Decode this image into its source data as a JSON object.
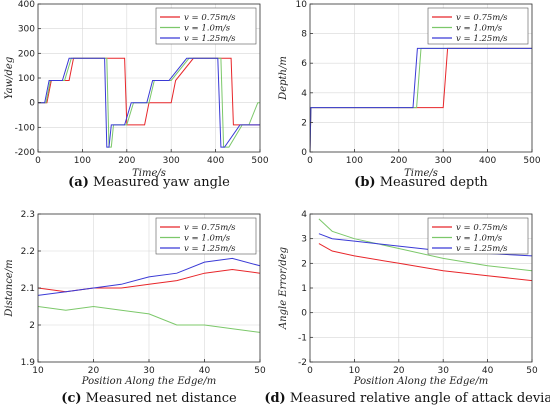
{
  "chart_data": [
    {
      "id": "a",
      "type": "line",
      "caption_tag": "(a)",
      "caption_text": "Measured yaw angle",
      "xlabel": "Time/s",
      "ylabel": "Yaw/deg",
      "xlim": [
        0,
        500
      ],
      "ylim": [
        -200,
        400
      ],
      "xticks": [
        0,
        100,
        200,
        300,
        400,
        500
      ],
      "yticks": [
        -200,
        -100,
        0,
        100,
        200,
        300,
        400
      ],
      "grid": true,
      "legend": "top-right",
      "series": [
        {
          "name": "v = 0.75m/s",
          "color": "#e8262a",
          "x": [
            0,
            20,
            30,
            70,
            80,
            180,
            185,
            195,
            200,
            210,
            240,
            250,
            300,
            310,
            350,
            400,
            420,
            435,
            440,
            460,
            480,
            500
          ],
          "y": [
            0,
            0,
            90,
            90,
            180,
            180,
            180,
            180,
            -90,
            -90,
            -90,
            0,
            0,
            90,
            180,
            180,
            180,
            180,
            -90,
            -90,
            -90,
            -90
          ]
        },
        {
          "name": "v = 1.0m/s",
          "color": "#7cc86a",
          "x": [
            0,
            18,
            28,
            60,
            75,
            155,
            160,
            165,
            170,
            200,
            215,
            250,
            262,
            300,
            340,
            412,
            418,
            430,
            460,
            475,
            495,
            500
          ],
          "y": [
            0,
            0,
            90,
            90,
            180,
            180,
            -180,
            -180,
            -90,
            -90,
            0,
            0,
            90,
            90,
            180,
            180,
            -180,
            -180,
            -90,
            -90,
            0,
            0
          ]
        },
        {
          "name": "v = 1.25m/s",
          "color": "#3a3ad6",
          "x": [
            0,
            15,
            25,
            55,
            70,
            150,
            155,
            160,
            165,
            195,
            210,
            245,
            258,
            295,
            335,
            405,
            412,
            420,
            455,
            470,
            500
          ],
          "y": [
            0,
            0,
            90,
            90,
            180,
            180,
            -180,
            -180,
            -90,
            -90,
            0,
            0,
            90,
            90,
            180,
            180,
            -180,
            -180,
            -90,
            -90,
            -90
          ]
        }
      ]
    },
    {
      "id": "b",
      "type": "line",
      "caption_tag": "(b)",
      "caption_text": "Measured depth",
      "xlabel": "Time/s",
      "ylabel": "Depth/m",
      "xlim": [
        0,
        500
      ],
      "ylim": [
        0,
        10
      ],
      "xticks": [
        0,
        100,
        200,
        300,
        400,
        500
      ],
      "yticks": [
        0,
        2,
        4,
        6,
        8,
        10
      ],
      "grid": true,
      "legend": "top-right",
      "series": [
        {
          "name": "v = 0.75m/s",
          "color": "#e8262a",
          "x": [
            0,
            2,
            10,
            300,
            310,
            500
          ],
          "y": [
            0,
            3,
            3,
            3,
            7,
            7
          ]
        },
        {
          "name": "v = 1.0m/s",
          "color": "#7cc86a",
          "x": [
            0,
            2,
            10,
            240,
            250,
            500
          ],
          "y": [
            0,
            3,
            3,
            3,
            7,
            7
          ]
        },
        {
          "name": "v = 1.25m/s",
          "color": "#3a3ad6",
          "x": [
            0,
            2,
            10,
            232,
            242,
            500
          ],
          "y": [
            0,
            3,
            3,
            3,
            7,
            7
          ]
        }
      ]
    },
    {
      "id": "c",
      "type": "line",
      "caption_tag": "(c)",
      "caption_text": "Measured net distance",
      "xlabel": "Position Along the Edge/m",
      "ylabel": "Distance/m",
      "xlim": [
        10,
        50
      ],
      "ylim": [
        1.9,
        2.3
      ],
      "xticks": [
        10,
        20,
        30,
        40,
        50
      ],
      "yticks": [
        1.9,
        2,
        2.1,
        2.2,
        2.3
      ],
      "grid": true,
      "legend": "top-right",
      "series": [
        {
          "name": "v = 0.75m/s",
          "color": "#e8262a",
          "x": [
            10,
            15,
            20,
            25,
            30,
            35,
            40,
            45,
            50
          ],
          "y": [
            2.1,
            2.09,
            2.1,
            2.1,
            2.11,
            2.12,
            2.14,
            2.15,
            2.14
          ]
        },
        {
          "name": "v = 1.0m/s",
          "color": "#7cc86a",
          "x": [
            10,
            15,
            20,
            25,
            30,
            35,
            40,
            45,
            50
          ],
          "y": [
            2.05,
            2.04,
            2.05,
            2.04,
            2.03,
            2.0,
            2.0,
            1.99,
            1.98
          ]
        },
        {
          "name": "v = 1.25m/s",
          "color": "#3a3ad6",
          "x": [
            10,
            15,
            20,
            25,
            30,
            35,
            40,
            45,
            50
          ],
          "y": [
            2.08,
            2.09,
            2.1,
            2.11,
            2.13,
            2.14,
            2.17,
            2.18,
            2.16
          ]
        }
      ]
    },
    {
      "id": "d",
      "type": "line",
      "caption_tag": "(d)",
      "caption_text": "Measured relative angle of attack deviation",
      "xlabel": "Position Along the Edge/m",
      "ylabel": "Angle Error/deg",
      "xlim": [
        0,
        50
      ],
      "ylim": [
        -2,
        4
      ],
      "xticks": [
        0,
        10,
        20,
        30,
        40,
        50
      ],
      "yticks": [
        -2,
        -1,
        0,
        1,
        2,
        3,
        4
      ],
      "grid": true,
      "legend": "top-right",
      "series": [
        {
          "name": "v = 0.75m/s",
          "color": "#e8262a",
          "x": [
            2,
            5,
            10,
            20,
            30,
            40,
            50
          ],
          "y": [
            2.8,
            2.5,
            2.3,
            2.0,
            1.7,
            1.5,
            1.3
          ]
        },
        {
          "name": "v = 1.0m/s",
          "color": "#7cc86a",
          "x": [
            2,
            5,
            10,
            20,
            30,
            40,
            50
          ],
          "y": [
            3.8,
            3.3,
            3.0,
            2.6,
            2.2,
            1.9,
            1.7
          ]
        },
        {
          "name": "v = 1.25m/s",
          "color": "#3a3ad6",
          "x": [
            2,
            5,
            10,
            20,
            30,
            40,
            50
          ],
          "y": [
            3.2,
            3.0,
            2.9,
            2.7,
            2.5,
            2.4,
            2.3
          ]
        }
      ]
    }
  ]
}
